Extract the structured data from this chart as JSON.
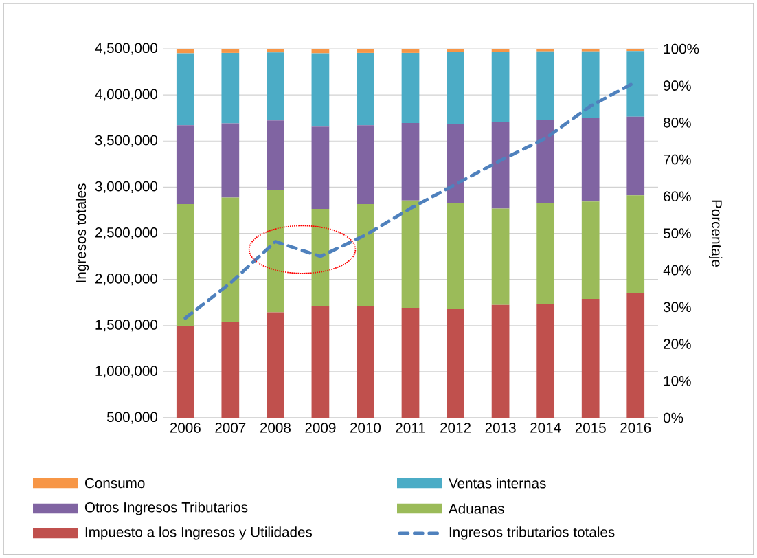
{
  "chart_data": {
    "type": "bar",
    "stacked": true,
    "categories": [
      "2006",
      "2007",
      "2008",
      "2009",
      "2010",
      "2011",
      "2012",
      "2013",
      "2014",
      "2015",
      "2016"
    ],
    "ylabel": "Ingresos totales",
    "y2label": "Porcentaje",
    "ylim": [
      500000,
      4500000
    ],
    "yticks": [
      {
        "value": 500000,
        "label": "500,000"
      },
      {
        "value": 1000000,
        "label": "1,000,000"
      },
      {
        "value": 1500000,
        "label": "1,500,000"
      },
      {
        "value": 2000000,
        "label": "2,000,000"
      },
      {
        "value": 2500000,
        "label": "2,500,000"
      },
      {
        "value": 3000000,
        "label": "3,000,000"
      },
      {
        "value": 3500000,
        "label": "3,500,000"
      },
      {
        "value": 4000000,
        "label": "4,000,000"
      },
      {
        "value": 4500000,
        "label": "4,500,000"
      }
    ],
    "y2lim": [
      0,
      100
    ],
    "y2ticks": [
      {
        "value": 0,
        "label": "0%"
      },
      {
        "value": 10,
        "label": "10%"
      },
      {
        "value": 20,
        "label": "20%"
      },
      {
        "value": 30,
        "label": "30%"
      },
      {
        "value": 40,
        "label": "40%"
      },
      {
        "value": 50,
        "label": "50%"
      },
      {
        "value": 60,
        "label": "60%"
      },
      {
        "value": 70,
        "label": "70%"
      },
      {
        "value": 80,
        "label": "80%"
      },
      {
        "value": 90,
        "label": "90%"
      },
      {
        "value": 100,
        "label": "100%"
      }
    ],
    "grid": "y",
    "legend": "bottom",
    "series": [
      {
        "name": "Impuesto a los Ingresos y Utilidades",
        "color": "#c0504d",
        "axis": "y2",
        "values": [
          24.9,
          26.0,
          28.6,
          30.2,
          30.2,
          29.8,
          29.5,
          30.6,
          30.8,
          32.2,
          33.8
        ]
      },
      {
        "name": "Aduanas",
        "color": "#9bbb59",
        "axis": "y2",
        "values": [
          33.0,
          33.7,
          33.1,
          26.4,
          27.7,
          29.1,
          28.6,
          26.1,
          27.5,
          26.4,
          26.5
        ]
      },
      {
        "name": "Otros Ingresos Tributarios",
        "color": "#8064a2",
        "axis": "y2",
        "values": [
          21.4,
          20.1,
          18.9,
          22.3,
          21.4,
          21.0,
          21.5,
          23.4,
          22.5,
          22.6,
          21.3
        ]
      },
      {
        "name": "Ventas internas",
        "color": "#4bacc6",
        "axis": "y2",
        "values": [
          19.5,
          19.1,
          18.4,
          19.9,
          19.6,
          19.0,
          19.5,
          19.1,
          18.5,
          18.1,
          17.8
        ]
      },
      {
        "name": "Consumo",
        "color": "#f79646",
        "axis": "y2",
        "values": [
          1.2,
          1.1,
          1.0,
          1.2,
          1.1,
          1.1,
          0.9,
          0.8,
          0.7,
          0.7,
          0.6
        ]
      },
      {
        "name": "Ingresos tributarios totales",
        "type": "line",
        "color": "#4f81bd",
        "axis": "y",
        "line_style": "dashed",
        "values": [
          1580000,
          1960000,
          2410000,
          2250000,
          2480000,
          2770000,
          3030000,
          3290000,
          3530000,
          3880000,
          4140000
        ]
      }
    ]
  }
}
